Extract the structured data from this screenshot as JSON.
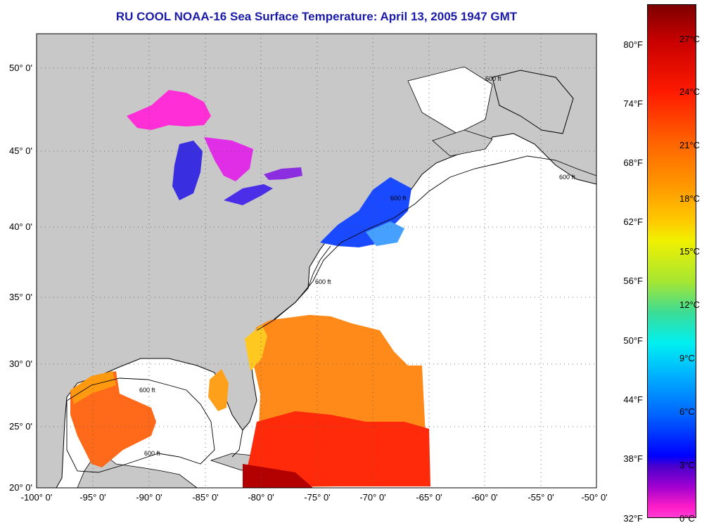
{
  "title": "RU COOL  NOAA-16  Sea Surface Temperature:  April 13, 2005 1947 GMT",
  "latitude_labels": [
    "50° 0'",
    "45° 0'",
    "40° 0'",
    "35° 0'",
    "30° 0'",
    "25° 0'",
    "20° 0'"
  ],
  "longitude_labels": [
    "-100° 0'",
    "-95° 0'",
    "-90° 0'",
    "-85° 0'",
    "-80° 0'",
    "-75° 0'",
    "-70° 0'",
    "-65° 0'",
    "-60° 0'",
    "-55° 0'",
    "-50° 0'"
  ],
  "colorbar": {
    "fahrenheit_labels": [
      "80°F",
      "74°F",
      "68°F",
      "62°F",
      "56°F",
      "50°F",
      "44°F",
      "38°F",
      "32°F"
    ],
    "celsius_labels": [
      "27°C",
      "24°C",
      "21°C",
      "18°C",
      "15°C",
      "12°C",
      "9°C",
      "6°C",
      "3°C",
      "0°C"
    ]
  },
  "contour_labels": [
    "600 ft",
    "600 ft",
    "600 ft",
    "600 ft",
    "600 ft",
    "600 ft"
  ],
  "colors": {
    "land": "#c8c8c8",
    "ocean_no_data": "#ffffff",
    "title": "#1a1aa8"
  }
}
